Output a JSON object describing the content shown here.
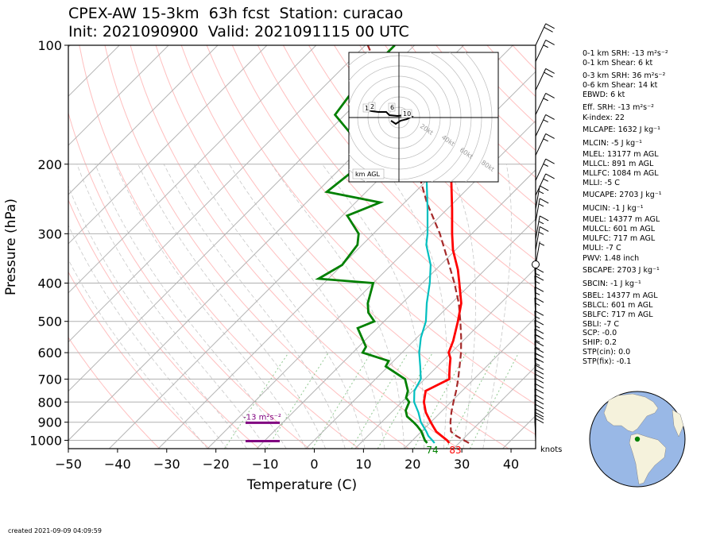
{
  "title_line1": "CPEX-AW 15-3km  63h fcst  Station: curacao",
  "title_line2": "Init: 2021090900  Valid: 2021091115 00 UTC",
  "created": "created 2021-09-09 04:09:59",
  "stats": [
    "0-1 km SRH: -13 m²s⁻²",
    "0-1 km Shear: 6 kt",
    "0-3 km SRH: 36 m²s⁻²",
    "0-6 km Shear: 14 kt",
    "EBWD: 6 kt",
    "Eff. SRH: -13 m²s⁻²",
    "K-index: 22",
    "MLCAPE: 1632 J kg⁻¹",
    "MLCIN: -5 J kg⁻¹",
    "MLEL: 13177 m AGL",
    "MLLCL: 891 m AGL",
    "MLLFC: 1084 m AGL",
    "MLLI: -5 C",
    "MUCAPE: 2703 J kg⁻¹",
    "MUCIN: -1 J kg⁻¹",
    "MUEL: 14377 m AGL",
    "MULCL: 601 m AGL",
    "MULFC: 717 m AGL",
    "MULI: -7 C",
    "PWV: 1.48 inch",
    "SBCAPE: 2703 J kg⁻¹",
    "SBCIN: -1 J kg⁻¹",
    "SBEL: 14377 m AGL",
    "SBLCL: 601 m AGL",
    "SBLFC: 717 m AGL",
    "SBLI: -7 C",
    "SCP: -0.0",
    "SHIP: 0.2",
    "STP(cin): 0.0",
    "STP(fix): -0.1"
  ],
  "annotations": {
    "srh_label": "-13 m²s⁻²",
    "surface_td": "74",
    "surface_t": "83",
    "knots_label": "knots",
    "hodo_km_label": "km AGL",
    "hodo_ring_labels": [
      "20kt",
      "40kt",
      "60kt",
      "80kt"
    ],
    "hodo_height_labels": [
      "1",
      "2",
      "6",
      "10"
    ]
  },
  "colors": {
    "temperature": "#ff0000",
    "dewpoint": "#008000",
    "wetbulb": "#00bfbf",
    "parcel": "#a52a2a",
    "srh_layer": "#800080",
    "dry_adiabat": "#ffbfbf",
    "mixing_ratio": "#90c890",
    "isotherm": "#b4b4b4",
    "globe_ocean": "#99b8e6",
    "globe_land": "#f5f2dc",
    "station_dot": "#008000"
  },
  "chart_data": {
    "type": "line",
    "subtype": "skew-T log-p sounding",
    "xlabel": "Temperature (C)",
    "ylabel": "Pressure (hPa)",
    "xlim": [
      -50,
      45
    ],
    "ylim": [
      1050,
      100
    ],
    "y_scale": "log",
    "xticks": [
      -50,
      -40,
      -30,
      -20,
      -10,
      0,
      10,
      20,
      30,
      40
    ],
    "yticks": [
      100,
      200,
      300,
      400,
      500,
      600,
      700,
      800,
      900,
      1000
    ],
    "grid": true,
    "series": [
      {
        "role": "temperature",
        "unit": "C",
        "points": [
          [
            1016,
            28
          ],
          [
            1000,
            27
          ],
          [
            975,
            25
          ],
          [
            950,
            23
          ],
          [
            925,
            21.5
          ],
          [
            900,
            20
          ],
          [
            850,
            17
          ],
          [
            800,
            14.5
          ],
          [
            750,
            12.6
          ],
          [
            720,
            14
          ],
          [
            700,
            15
          ],
          [
            680,
            14
          ],
          [
            650,
            12.5
          ],
          [
            620,
            11
          ],
          [
            600,
            9.5
          ],
          [
            560,
            8
          ],
          [
            500,
            5
          ],
          [
            450,
            2
          ],
          [
            400,
            -2.5
          ],
          [
            370,
            -5.5
          ],
          [
            330,
            -10.5
          ],
          [
            300,
            -14
          ],
          [
            260,
            -19
          ],
          [
            220,
            -25
          ],
          [
            200,
            -29.5
          ],
          [
            180,
            -34.5
          ],
          [
            160,
            -40
          ],
          [
            140,
            -47
          ],
          [
            120,
            -58
          ],
          [
            110,
            -64
          ]
        ]
      },
      {
        "role": "dewpoint",
        "unit": "C",
        "points": [
          [
            1016,
            23.5
          ],
          [
            1000,
            22.5
          ],
          [
            970,
            21
          ],
          [
            950,
            20
          ],
          [
            920,
            18
          ],
          [
            900,
            16.5
          ],
          [
            870,
            14
          ],
          [
            840,
            12.5
          ],
          [
            800,
            11.5
          ],
          [
            780,
            10
          ],
          [
            750,
            9
          ],
          [
            700,
            6
          ],
          [
            650,
            -0.5
          ],
          [
            630,
            -1
          ],
          [
            600,
            -8
          ],
          [
            580,
            -8.5
          ],
          [
            520,
            -14
          ],
          [
            500,
            -12
          ],
          [
            475,
            -15
          ],
          [
            450,
            -17
          ],
          [
            400,
            -20
          ],
          [
            390,
            -32
          ],
          [
            360,
            -30
          ],
          [
            320,
            -31
          ],
          [
            300,
            -33
          ],
          [
            270,
            -39
          ],
          [
            250,
            -35
          ],
          [
            235,
            -48
          ],
          [
            210,
            -47
          ],
          [
            200,
            -47
          ],
          [
            170,
            -54
          ],
          [
            150,
            -62
          ],
          [
            120,
            -64
          ],
          [
            100,
            -64
          ]
        ]
      },
      {
        "role": "wetbulb",
        "unit": "C",
        "points": [
          [
            1016,
            25
          ],
          [
            1000,
            24
          ],
          [
            975,
            22.3
          ],
          [
            950,
            21
          ],
          [
            925,
            19.5
          ],
          [
            900,
            18
          ],
          [
            850,
            15.5
          ],
          [
            800,
            12.5
          ],
          [
            750,
            10.3
          ],
          [
            700,
            9.2
          ],
          [
            650,
            6.5
          ],
          [
            600,
            3.5
          ],
          [
            550,
            0.8
          ],
          [
            500,
            -1.5
          ],
          [
            450,
            -5
          ],
          [
            400,
            -8.5
          ],
          [
            360,
            -12
          ],
          [
            320,
            -17
          ],
          [
            300,
            -19
          ],
          [
            260,
            -24
          ],
          [
            220,
            -30
          ],
          [
            200,
            -34
          ],
          [
            180,
            -38
          ],
          [
            160,
            -43
          ],
          [
            140,
            -50
          ],
          [
            120,
            -60
          ],
          [
            110,
            -66
          ]
        ]
      },
      {
        "role": "parcel",
        "unit": "C",
        "points": [
          [
            1016,
            32
          ],
          [
            975,
            28
          ],
          [
            950,
            26
          ],
          [
            900,
            24
          ],
          [
            850,
            22.2
          ],
          [
            800,
            20.5
          ],
          [
            750,
            18.8
          ],
          [
            700,
            16.8
          ],
          [
            650,
            14.5
          ],
          [
            600,
            12
          ],
          [
            550,
            9
          ],
          [
            500,
            5.5
          ],
          [
            450,
            1.5
          ],
          [
            400,
            -3.5
          ],
          [
            350,
            -9.5
          ],
          [
            300,
            -16.5
          ],
          [
            250,
            -25.5
          ],
          [
            200,
            -35.5
          ],
          [
            170,
            -43.5
          ],
          [
            150,
            -49.5
          ],
          [
            130,
            -56
          ],
          [
            115,
            -62.5
          ],
          [
            100,
            -69.5
          ]
        ]
      }
    ],
    "srh_layers": [
      {
        "label": "-13 m²s⁻²",
        "pressure_hPa": 903
      },
      {
        "pressure_hPa": 1005
      }
    ],
    "wind_barbs_kt": [
      [
        1010,
        9
      ],
      [
        990,
        9
      ],
      [
        975,
        9
      ],
      [
        955,
        10
      ],
      [
        930,
        10
      ],
      [
        905,
        11
      ],
      [
        880,
        11
      ],
      [
        850,
        12
      ],
      [
        825,
        12
      ],
      [
        800,
        12
      ],
      [
        780,
        12
      ],
      [
        760,
        12
      ],
      [
        740,
        12
      ],
      [
        710,
        13
      ],
      [
        690,
        13
      ],
      [
        670,
        13
      ],
      [
        645,
        14
      ],
      [
        620,
        14
      ],
      [
        600,
        14
      ],
      [
        570,
        15
      ],
      [
        540,
        15
      ],
      [
        500,
        15
      ],
      [
        470,
        15
      ],
      [
        440,
        15
      ],
      [
        420,
        15
      ],
      [
        360,
        5
      ],
      [
        330,
        15
      ],
      [
        310,
        15
      ],
      [
        280,
        15
      ],
      [
        260,
        15
      ],
      [
        240,
        15
      ],
      [
        220,
        15
      ],
      [
        190,
        15
      ],
      [
        170,
        15
      ],
      [
        150,
        15
      ],
      [
        130,
        20
      ],
      [
        110,
        15
      ],
      [
        100,
        20
      ]
    ],
    "hodograph": {
      "ring_labels": [
        "20kt",
        "40kt",
        "60kt",
        "80kt"
      ],
      "height_labels": [
        "1",
        "2",
        "6",
        "10"
      ],
      "key": "km AGL"
    }
  }
}
